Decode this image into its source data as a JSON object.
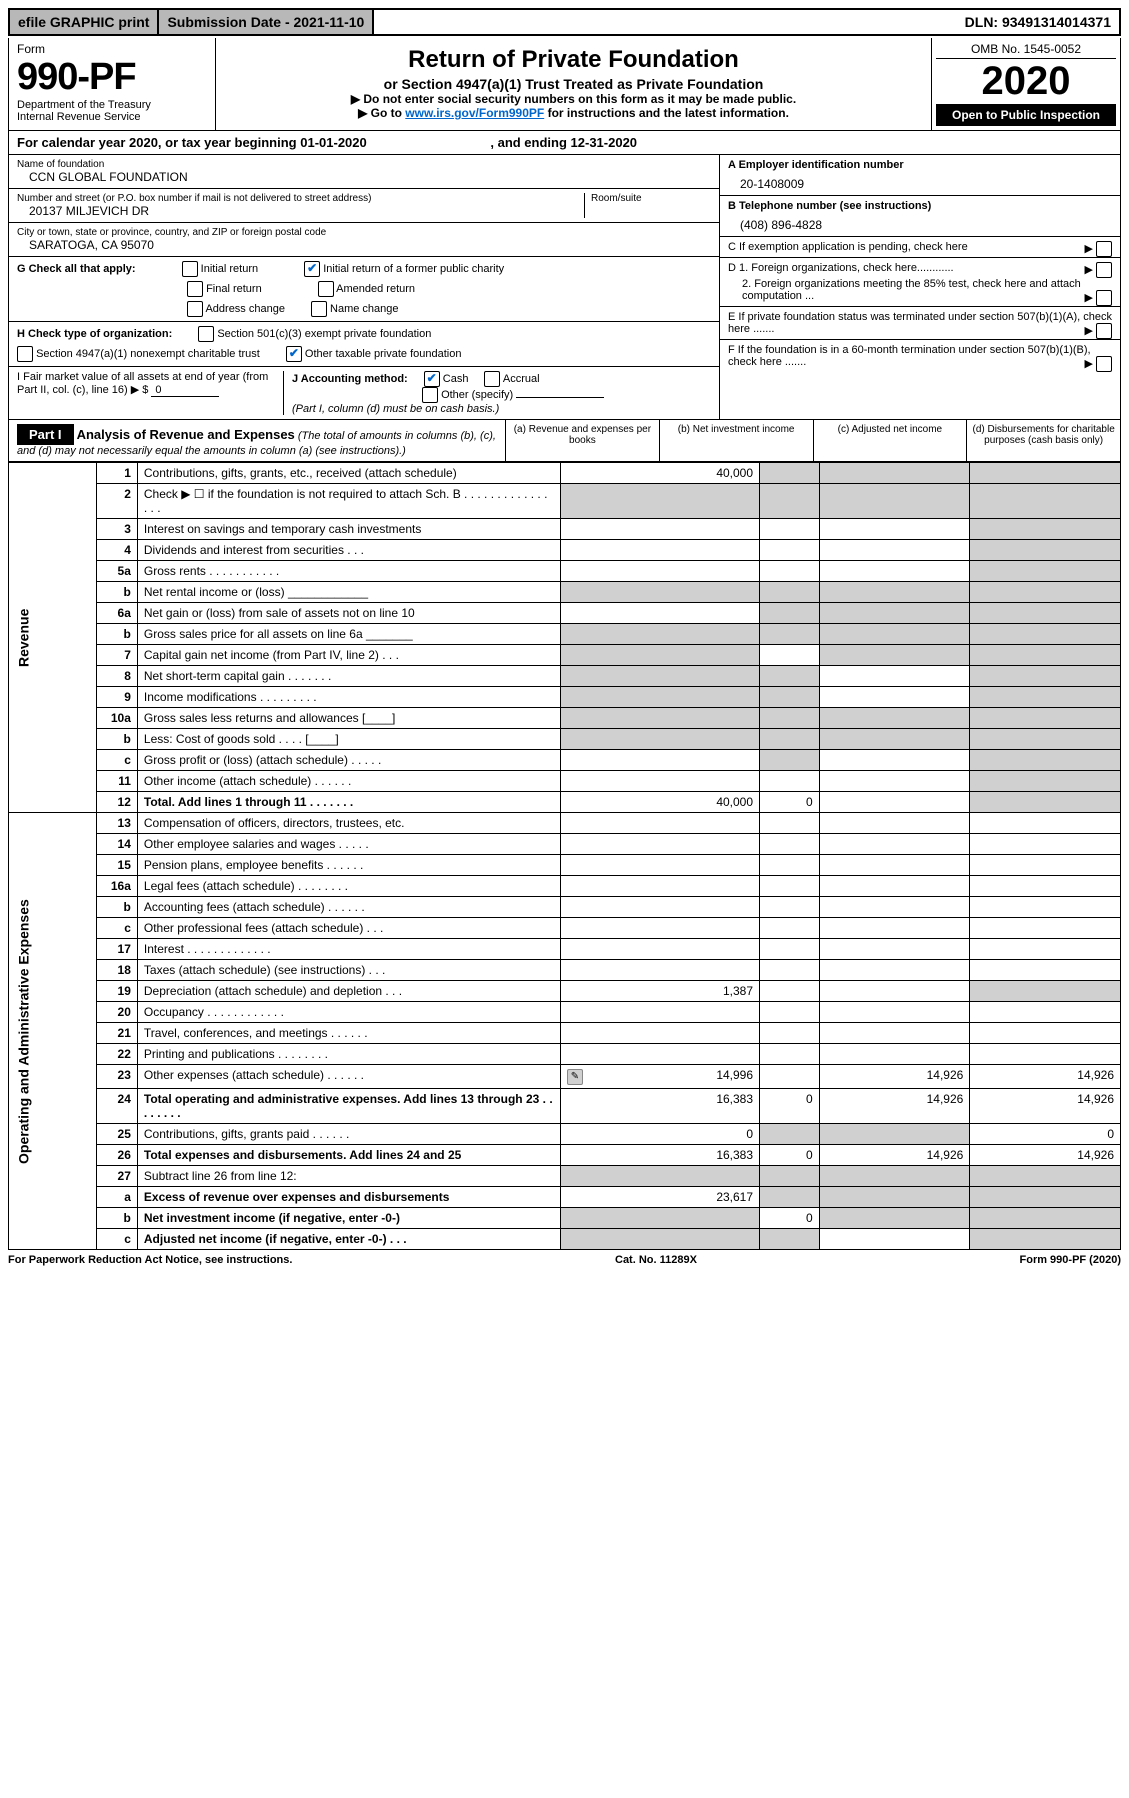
{
  "top": {
    "efile": "efile GRAPHIC print",
    "subdate_label": "Submission Date - 2021-11-10",
    "dln": "DLN: 93491314014371"
  },
  "header": {
    "form_label": "Form",
    "form_no": "990-PF",
    "dept": "Department of the Treasury",
    "irs": "Internal Revenue Service",
    "title": "Return of Private Foundation",
    "subtitle": "or Section 4947(a)(1) Trust Treated as Private Foundation",
    "line1": "▶ Do not enter social security numbers on this form as it may be made public.",
    "line2_pre": "▶ Go to ",
    "line2_link": "www.irs.gov/Form990PF",
    "line2_post": " for instructions and the latest information.",
    "omb": "OMB No. 1545-0052",
    "year": "2020",
    "open": "Open to Public Inspection"
  },
  "calyear": {
    "text_pre": "For calendar year 2020, or tax year beginning ",
    "begin": "01-01-2020",
    "mid": " , and ending ",
    "end": "12-31-2020"
  },
  "foundation": {
    "name_label": "Name of foundation",
    "name": "CCN GLOBAL FOUNDATION",
    "addr_label": "Number and street (or P.O. box number if mail is not delivered to street address)",
    "addr": "20137 MILJEVICH DR",
    "room_label": "Room/suite",
    "city_label": "City or town, state or province, country, and ZIP or foreign postal code",
    "city": "SARATOGA, CA  95070"
  },
  "right_box": {
    "A_label": "A Employer identification number",
    "A_val": "20-1408009",
    "B_label": "B Telephone number (see instructions)",
    "B_val": "(408) 896-4828",
    "C_label": "C If exemption application is pending, check here",
    "D1_label": "D 1. Foreign organizations, check here............",
    "D2_label": "2. Foreign organizations meeting the 85% test, check here and attach computation ...",
    "E_label": "E If private foundation status was terminated under section 507(b)(1)(A), check here .......",
    "F_label": "F If the foundation is in a 60-month termination under section 507(b)(1)(B), check here ......."
  },
  "G": {
    "label": "G Check all that apply:",
    "opts": [
      "Initial return",
      "Initial return of a former public charity",
      "Final return",
      "Amended return",
      "Address change",
      "Name change"
    ]
  },
  "H": {
    "label": "H Check type of organization:",
    "opt1": "Section 501(c)(3) exempt private foundation",
    "opt2": "Section 4947(a)(1) nonexempt charitable trust",
    "opt3": "Other taxable private foundation"
  },
  "I": {
    "label": "I Fair market value of all assets at end of year (from Part II, col. (c), line 16) ▶ $",
    "val": "0"
  },
  "J": {
    "label": "J Accounting method:",
    "cash": "Cash",
    "accrual": "Accrual",
    "other": "Other (specify)",
    "note": "(Part I, column (d) must be on cash basis.)"
  },
  "part1": {
    "label": "Part I",
    "title": "Analysis of Revenue and Expenses",
    "sub": "(The total of amounts in columns (b), (c), and (d) may not necessarily equal the amounts in column (a) (see instructions).)",
    "cols": {
      "a": "(a) Revenue and expenses per books",
      "b": "(b) Net investment income",
      "c": "(c) Adjusted net income",
      "d": "(d) Disbursements for charitable purposes (cash basis only)"
    }
  },
  "sections": {
    "revenue": "Revenue",
    "opex": "Operating and Administrative Expenses"
  },
  "lines": [
    {
      "n": "1",
      "d": "Contributions, gifts, grants, etc., received (attach schedule)",
      "a": "40,000",
      "b": "",
      "c": "",
      "dd": "",
      "greyB": true,
      "greyC": true,
      "greyD": true
    },
    {
      "n": "2",
      "d": "Check ▶ ☐ if the foundation is not required to attach Sch. B   .  .  .  .  .  .  .  .  .  .  .  .  .  .  .  .",
      "a": "",
      "b": "",
      "c": "",
      "dd": "",
      "greyA": true,
      "greyB": true,
      "greyC": true,
      "greyD": true
    },
    {
      "n": "3",
      "d": "Interest on savings and temporary cash investments",
      "a": "",
      "b": "",
      "c": "",
      "dd": "",
      "greyD": true
    },
    {
      "n": "4",
      "d": "Dividends and interest from securities   .   .   .",
      "a": "",
      "b": "",
      "c": "",
      "dd": "",
      "greyD": true
    },
    {
      "n": "5a",
      "d": "Gross rents   .   .   .   .   .   .   .   .   .   .   .",
      "a": "",
      "b": "",
      "c": "",
      "dd": "",
      "greyD": true
    },
    {
      "n": "b",
      "d": "Net rental income or (loss)  ____________",
      "a": "",
      "b": "",
      "c": "",
      "dd": "",
      "greyA": true,
      "greyB": true,
      "greyC": true,
      "greyD": true
    },
    {
      "n": "6a",
      "d": "Net gain or (loss) from sale of assets not on line 10",
      "a": "",
      "b": "",
      "c": "",
      "dd": "",
      "greyB": true,
      "greyC": true,
      "greyD": true
    },
    {
      "n": "b",
      "d": "Gross sales price for all assets on line 6a _______",
      "a": "",
      "b": "",
      "c": "",
      "dd": "",
      "greyA": true,
      "greyB": true,
      "greyC": true,
      "greyD": true
    },
    {
      "n": "7",
      "d": "Capital gain net income (from Part IV, line 2)   .   .   .",
      "a": "",
      "b": "",
      "c": "",
      "dd": "",
      "greyA": true,
      "greyC": true,
      "greyD": true
    },
    {
      "n": "8",
      "d": "Net short-term capital gain   .   .   .   .   .   .   .",
      "a": "",
      "b": "",
      "c": "",
      "dd": "",
      "greyA": true,
      "greyB": true,
      "greyD": true
    },
    {
      "n": "9",
      "d": "Income modifications   .   .   .   .   .   .   .   .   .",
      "a": "",
      "b": "",
      "c": "",
      "dd": "",
      "greyA": true,
      "greyB": true,
      "greyD": true
    },
    {
      "n": "10a",
      "d": "Gross sales less returns and allowances  [____]",
      "a": "",
      "b": "",
      "c": "",
      "dd": "",
      "greyA": true,
      "greyB": true,
      "greyC": true,
      "greyD": true
    },
    {
      "n": "b",
      "d": "Less: Cost of goods sold   .   .   .   .   [____]",
      "a": "",
      "b": "",
      "c": "",
      "dd": "",
      "greyA": true,
      "greyB": true,
      "greyC": true,
      "greyD": true
    },
    {
      "n": "c",
      "d": "Gross profit or (loss) (attach schedule)   .   .   .   .   .",
      "a": "",
      "b": "",
      "c": "",
      "dd": "",
      "greyB": true,
      "greyD": true
    },
    {
      "n": "11",
      "d": "Other income (attach schedule)   .   .   .   .   .   .",
      "a": "",
      "b": "",
      "c": "",
      "dd": "",
      "greyD": true
    },
    {
      "n": "12",
      "d": "Total. Add lines 1 through 11   .   .   .   .   .   .   .",
      "a": "40,000",
      "b": "0",
      "c": "",
      "dd": "",
      "bold": true,
      "greyD": true
    },
    {
      "n": "13",
      "d": "Compensation of officers, directors, trustees, etc.",
      "a": "",
      "b": "",
      "c": "",
      "dd": ""
    },
    {
      "n": "14",
      "d": "Other employee salaries and wages   .   .   .   .   .",
      "a": "",
      "b": "",
      "c": "",
      "dd": ""
    },
    {
      "n": "15",
      "d": "Pension plans, employee benefits   .   .   .   .   .   .",
      "a": "",
      "b": "",
      "c": "",
      "dd": ""
    },
    {
      "n": "16a",
      "d": "Legal fees (attach schedule)   .   .   .   .   .   .   .   .",
      "a": "",
      "b": "",
      "c": "",
      "dd": ""
    },
    {
      "n": "b",
      "d": "Accounting fees (attach schedule)   .   .   .   .   .   .",
      "a": "",
      "b": "",
      "c": "",
      "dd": ""
    },
    {
      "n": "c",
      "d": "Other professional fees (attach schedule)   .   .   .",
      "a": "",
      "b": "",
      "c": "",
      "dd": ""
    },
    {
      "n": "17",
      "d": "Interest   .   .   .   .   .   .   .   .   .   .   .   .   .",
      "a": "",
      "b": "",
      "c": "",
      "dd": ""
    },
    {
      "n": "18",
      "d": "Taxes (attach schedule) (see instructions)   .   .   .",
      "a": "",
      "b": "",
      "c": "",
      "dd": ""
    },
    {
      "n": "19",
      "d": "Depreciation (attach schedule) and depletion   .   .   .",
      "a": "1,387",
      "b": "",
      "c": "",
      "dd": "",
      "greyD": true
    },
    {
      "n": "20",
      "d": "Occupancy   .   .   .   .   .   .   .   .   .   .   .   .",
      "a": "",
      "b": "",
      "c": "",
      "dd": ""
    },
    {
      "n": "21",
      "d": "Travel, conferences, and meetings   .   .   .   .   .   .",
      "a": "",
      "b": "",
      "c": "",
      "dd": ""
    },
    {
      "n": "22",
      "d": "Printing and publications   .   .   .   .   .   .   .   .",
      "a": "",
      "b": "",
      "c": "",
      "dd": ""
    },
    {
      "n": "23",
      "d": "Other expenses (attach schedule)   .   .   .   .   .   .",
      "a": "14,996",
      "b": "",
      "c": "14,926",
      "dd": "14,926",
      "icon": true
    },
    {
      "n": "24",
      "d": "Total operating and administrative expenses. Add lines 13 through 23   .   .   .   .   .   .   .   .",
      "a": "16,383",
      "b": "0",
      "c": "14,926",
      "dd": "14,926",
      "bold": true
    },
    {
      "n": "25",
      "d": "Contributions, gifts, grants paid   .   .   .   .   .   .",
      "a": "0",
      "b": "",
      "c": "",
      "dd": "0",
      "greyB": true,
      "greyC": true
    },
    {
      "n": "26",
      "d": "Total expenses and disbursements. Add lines 24 and 25",
      "a": "16,383",
      "b": "0",
      "c": "14,926",
      "dd": "14,926",
      "bold": true
    },
    {
      "n": "27",
      "d": "Subtract line 26 from line 12:",
      "a": "",
      "b": "",
      "c": "",
      "dd": "",
      "greyA": true,
      "greyB": true,
      "greyC": true,
      "greyD": true
    },
    {
      "n": "a",
      "d": "Excess of revenue over expenses and disbursements",
      "a": "23,617",
      "b": "",
      "c": "",
      "dd": "",
      "bold": true,
      "greyB": true,
      "greyC": true,
      "greyD": true
    },
    {
      "n": "b",
      "d": "Net investment income (if negative, enter -0-)",
      "a": "",
      "b": "0",
      "c": "",
      "dd": "",
      "bold": true,
      "greyA": true,
      "greyC": true,
      "greyD": true
    },
    {
      "n": "c",
      "d": "Adjusted net income (if negative, enter -0-)   .   .   .",
      "a": "",
      "b": "",
      "c": "",
      "dd": "",
      "bold": true,
      "greyA": true,
      "greyB": true,
      "greyD": true
    }
  ],
  "footer": {
    "left": "For Paperwork Reduction Act Notice, see instructions.",
    "mid": "Cat. No. 11289X",
    "right": "Form 990-PF (2020)"
  },
  "style": {
    "bg": "#ffffff",
    "grey": "#d0d0d0",
    "link": "#0066cc"
  }
}
